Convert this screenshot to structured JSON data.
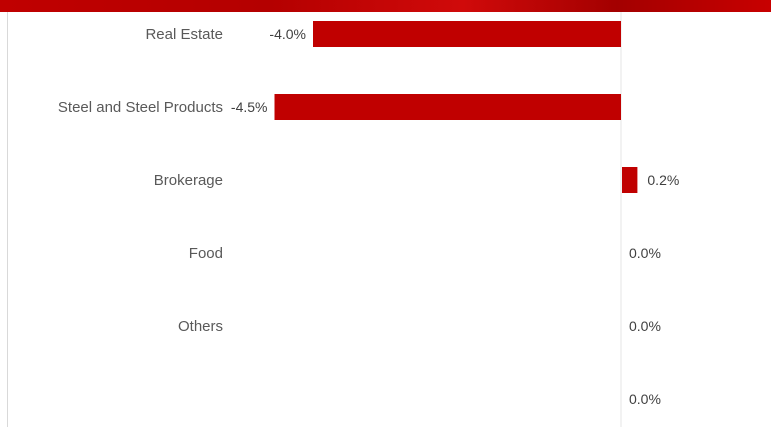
{
  "colors": {
    "bar": "#c00000",
    "banner": "#c00000",
    "axis_line": "#e6e6e6",
    "label_text": "#595959"
  },
  "chart_data": {
    "type": "bar",
    "orientation": "horizontal",
    "categories": [
      "Real Estate",
      "Steel and Steel Products",
      "Brokerage",
      "Food",
      "Others",
      ""
    ],
    "values": [
      -4.0,
      -4.5,
      0.2,
      0.0,
      0.0,
      0.0
    ],
    "value_labels": [
      "-4.0%",
      "-4.5%",
      "0.2%",
      "0.0%",
      "0.0%",
      "0.0%"
    ],
    "unit": "%",
    "xlim": [
      -4.5,
      2.2
    ],
    "grid": false,
    "legend": "none"
  }
}
